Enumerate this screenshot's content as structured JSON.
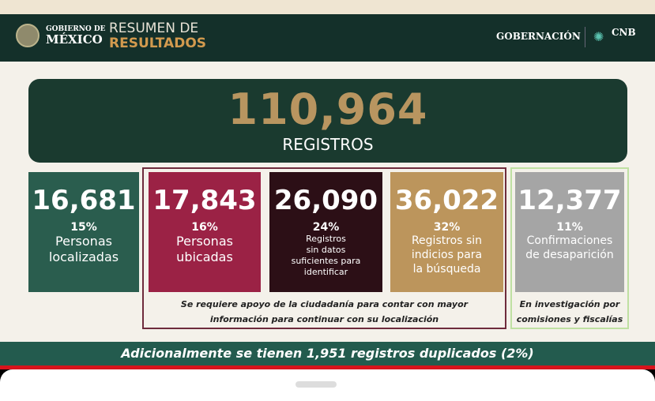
{
  "header": {
    "gov_line1": "GOBIERNO DE",
    "gov_line2": "MÉXICO",
    "title_line1": "RESUMEN DE",
    "title_line2": "RESULTADOS",
    "agency": "GOBERNACIÓN",
    "cnb": "CNB"
  },
  "total": {
    "value": "110,964",
    "label": "REGISTROS"
  },
  "cards": [
    {
      "value": "16,681",
      "percent": "15%",
      "label": "Personas\nlocalizadas",
      "color": "#2a5d4e"
    },
    {
      "value": "17,843",
      "percent": "16%",
      "label": "Personas\nubicadas",
      "color": "#9b2245"
    },
    {
      "value": "26,090",
      "percent": "24%",
      "label": "Registros\nsin datos\nsuficientes para\nidentificar",
      "color": "#2c0f16"
    },
    {
      "value": "36,022",
      "percent": "32%",
      "label": "Registros sin\nindicios para\nla búsqueda",
      "color": "#bc955c"
    },
    {
      "value": "12,377",
      "percent": "11%",
      "label": "Confirmaciones\nde desaparición",
      "color": "#a5a5a5"
    }
  ],
  "notes": {
    "citizen_support": "Se requiere apoyo de la ciudadanía para contar con mayor\ninformación para continuar con su localización",
    "investigation": "En investigación por\ncomisiones y fiscalías"
  },
  "footer": "Adicionalmente se tienen 1,951 registros duplicados (2%)"
}
